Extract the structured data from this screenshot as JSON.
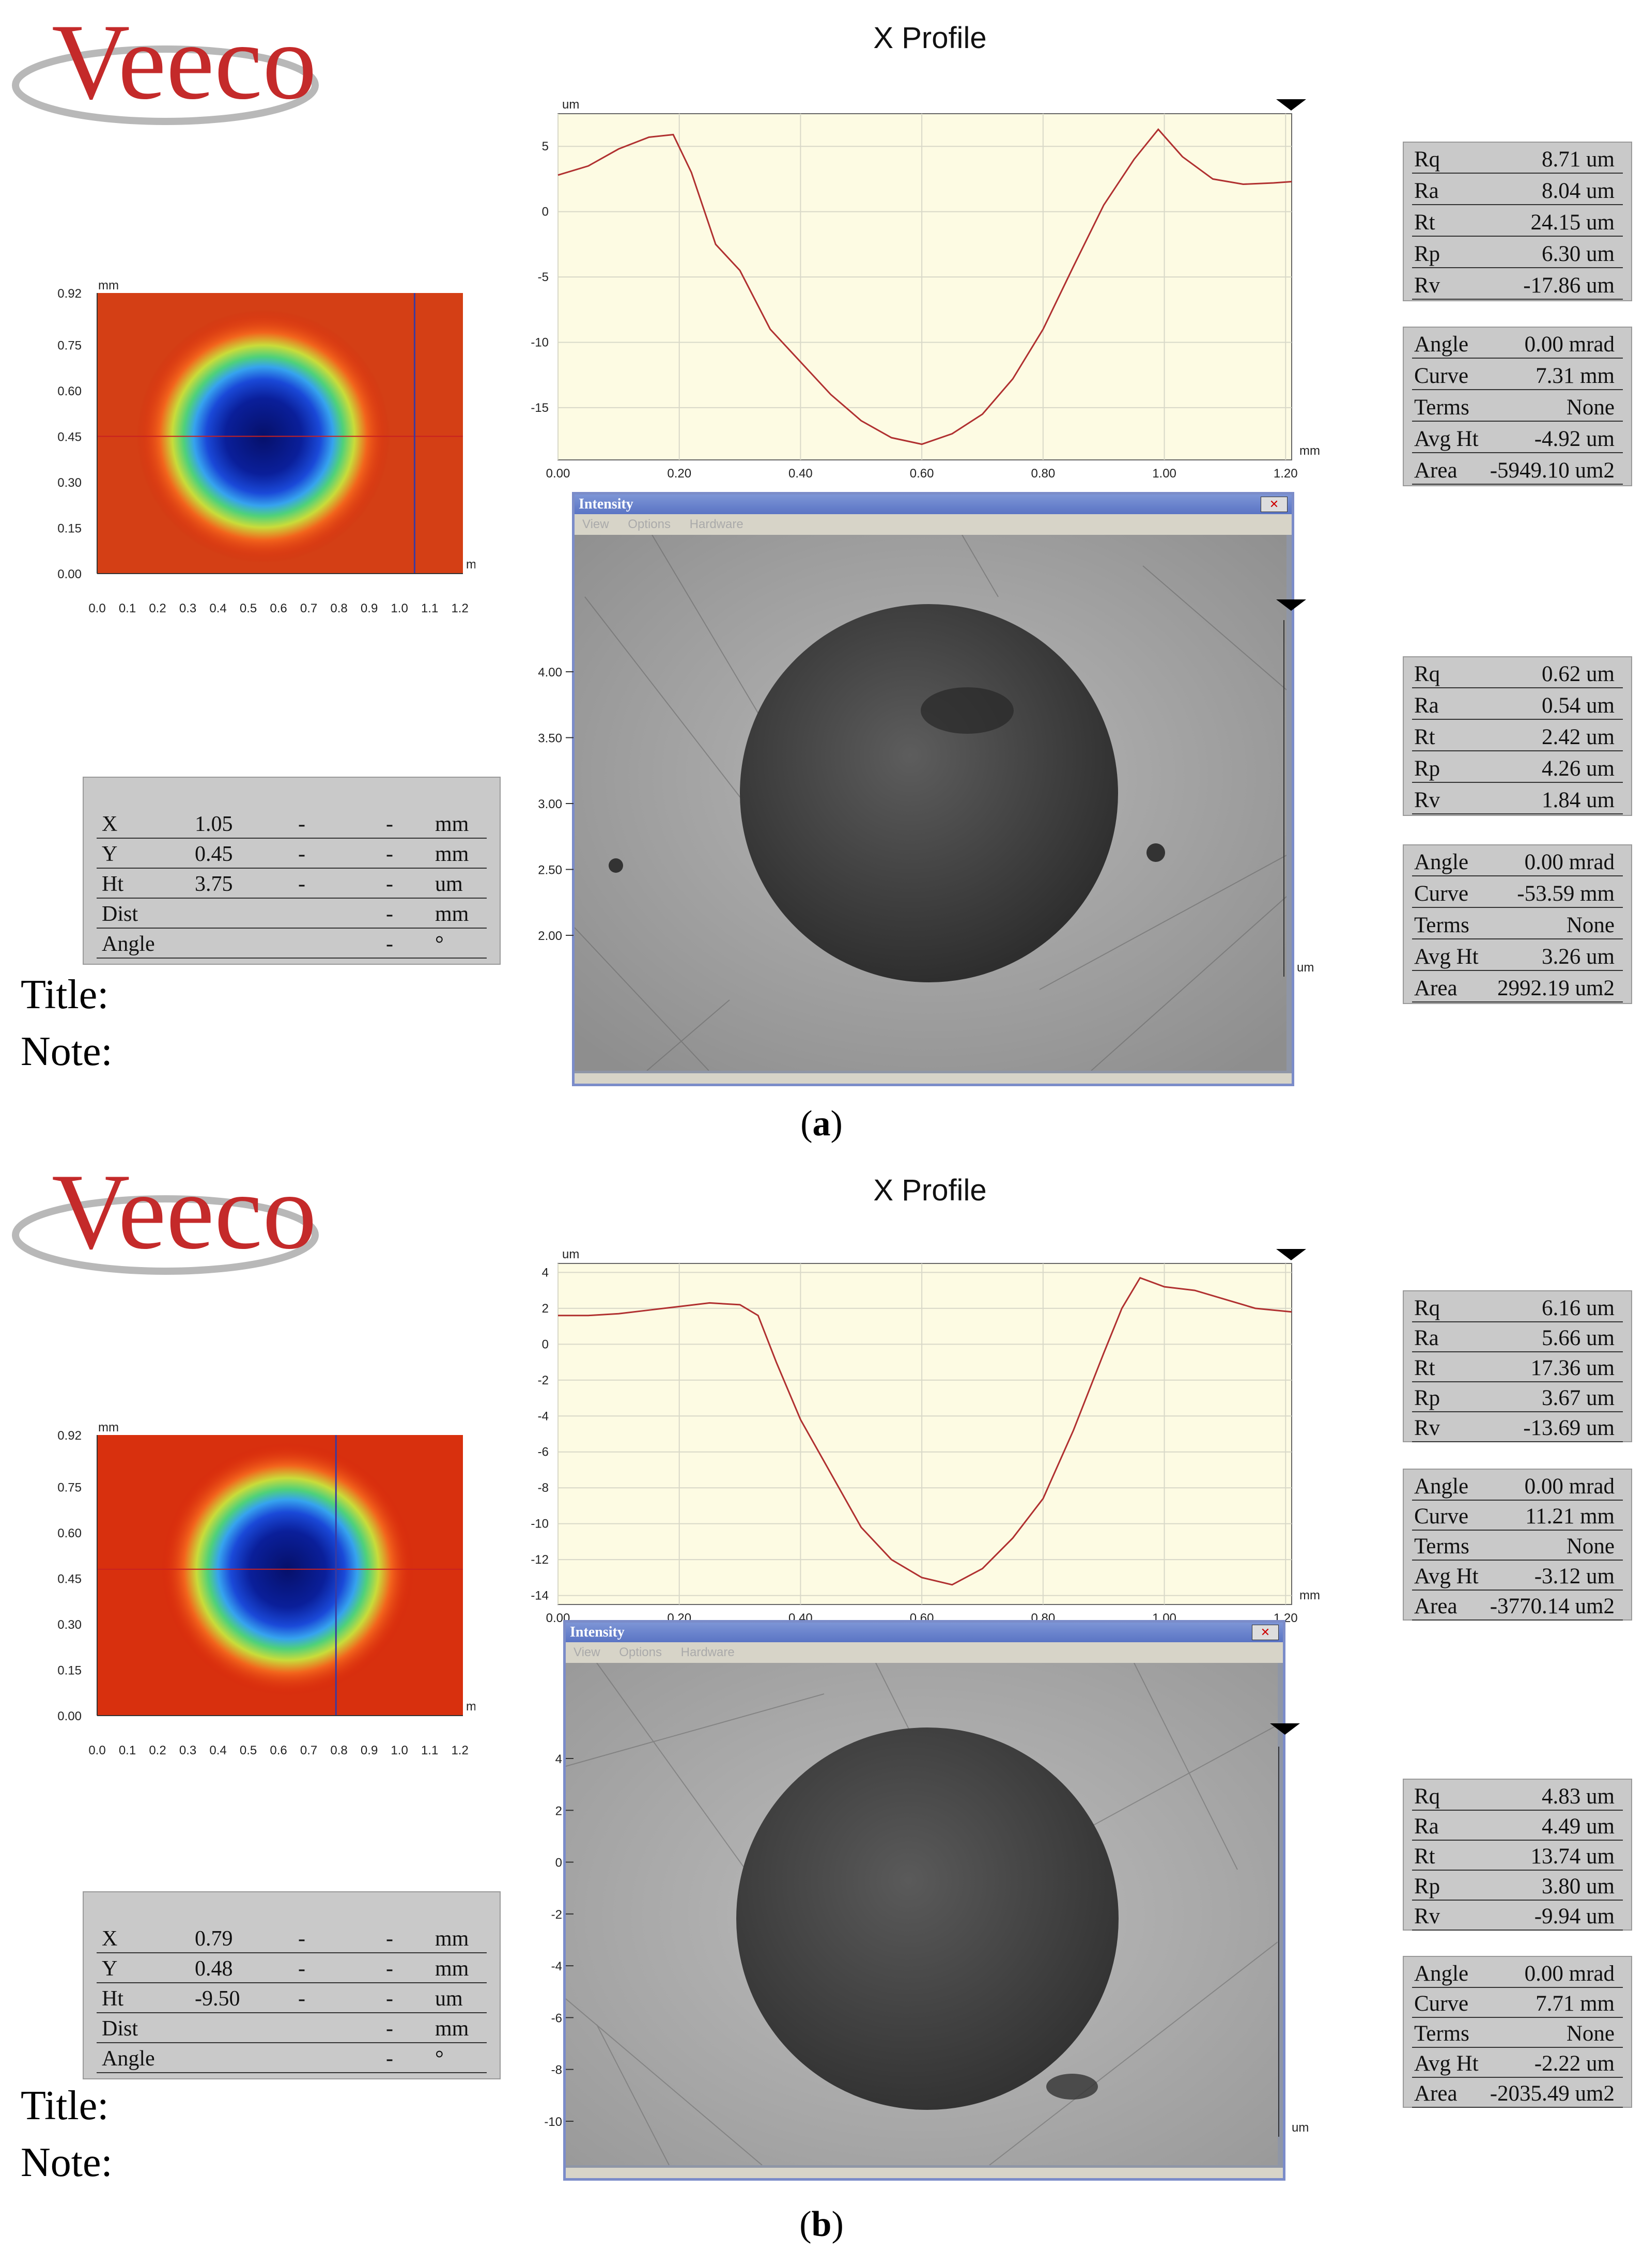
{
  "brand": "Veeco",
  "panels": [
    {
      "caption": "a",
      "profile_title": "X Profile",
      "title_label": "Title:",
      "note_label": "Note:",
      "map": {
        "y_ticks": [
          "0.92",
          "0.75",
          "0.60",
          "0.45",
          "0.30",
          "0.15",
          "0.00"
        ],
        "x_ticks": [
          "0.0",
          "0.1",
          "0.2",
          "0.3",
          "0.4",
          "0.5",
          "0.6",
          "0.7",
          "0.8",
          "0.9",
          "1.0",
          "1.1",
          "1.2"
        ],
        "unit_top": "mm",
        "unit_right": "mm",
        "cursor_x_mm": 1.05,
        "cursor_y_mm": 0.45,
        "crater_center_x_mm": 0.55,
        "crater_center_y_mm": 0.45,
        "colors": {
          "outer": "#d8200a",
          "mid": "#f5a51c",
          "ring": "#4fd17a",
          "inner": "#0a1f9a"
        }
      },
      "cursor_box": {
        "rows": [
          {
            "label": "X",
            "value": "1.05",
            "d1": "-",
            "d2": "-",
            "unit": "mm"
          },
          {
            "label": "Y",
            "value": "0.45",
            "d1": "-",
            "d2": "-",
            "unit": "mm"
          },
          {
            "label": "Ht",
            "value": "3.75",
            "d1": "-",
            "d2": "-",
            "unit": "um"
          },
          {
            "label": "Dist",
            "value": "",
            "d1": "",
            "d2": "-",
            "unit": "mm"
          },
          {
            "label": "Angle",
            "value": "",
            "d1": "",
            "d2": "-",
            "unit": "°"
          }
        ]
      },
      "chart_data": {
        "type": "line",
        "title": "X Profile",
        "xlabel": "mm",
        "ylabel": "um",
        "xlim": [
          0,
          1.21
        ],
        "ylim": [
          -19,
          7.5
        ],
        "x_ticks": [
          "0.00",
          "0.20",
          "0.40",
          "0.60",
          "0.80",
          "1.00",
          "1.20"
        ],
        "y_ticks": [
          "5",
          "0",
          "-5",
          "-10",
          "-15"
        ],
        "y_tick_values": [
          5,
          0,
          -5,
          -10,
          -15
        ],
        "x": [
          0,
          0.05,
          0.1,
          0.15,
          0.19,
          0.22,
          0.26,
          0.3,
          0.35,
          0.4,
          0.45,
          0.5,
          0.55,
          0.6,
          0.65,
          0.7,
          0.75,
          0.8,
          0.85,
          0.9,
          0.95,
          0.99,
          1.03,
          1.08,
          1.13,
          1.18,
          1.21
        ],
        "y": [
          2.8,
          3.5,
          4.8,
          5.7,
          5.9,
          3.0,
          -2.5,
          -4.5,
          -9.0,
          -11.5,
          -14.0,
          -16.0,
          -17.3,
          -17.8,
          -17.0,
          -15.5,
          -12.8,
          -9.0,
          -4.2,
          0.5,
          4.0,
          6.3,
          4.2,
          2.5,
          2.1,
          2.2,
          2.3
        ],
        "line_color": "#b03030"
      },
      "stats_top": [
        {
          "k": "Rq",
          "v": "8.71 um"
        },
        {
          "k": "Ra",
          "v": "8.04 um"
        },
        {
          "k": "Rt",
          "v": "24.15 um"
        },
        {
          "k": "Rp",
          "v": "6.30 um"
        },
        {
          "k": "Rv",
          "v": "-17.86 um"
        }
      ],
      "stats_fit_top": [
        {
          "k": "Angle",
          "v": "0.00 mrad"
        },
        {
          "k": "Curve",
          "v": "7.31 mm"
        },
        {
          "k": "Terms",
          "v": "None"
        },
        {
          "k": "Avg Ht",
          "v": "-4.92 um"
        },
        {
          "k": "Area",
          "v": "-5949.10 um2"
        }
      ],
      "intensity": {
        "title": "Intensity",
        "menu": [
          "View",
          "Options",
          "Hardware"
        ],
        "y_ticks": [
          "4.00",
          "3.50",
          "3.00",
          "2.50",
          "2.00"
        ],
        "unit": "um"
      },
      "stats_bottom": [
        {
          "k": "Rq",
          "v": "0.62 um"
        },
        {
          "k": "Ra",
          "v": "0.54 um"
        },
        {
          "k": "Rt",
          "v": "2.42 um"
        },
        {
          "k": "Rp",
          "v": "4.26 um"
        },
        {
          "k": "Rv",
          "v": "1.84 um"
        }
      ],
      "stats_fit_bottom": [
        {
          "k": "Angle",
          "v": "0.00 mrad"
        },
        {
          "k": "Curve",
          "v": "-53.59 mm"
        },
        {
          "k": "Terms",
          "v": "None"
        },
        {
          "k": "Avg Ht",
          "v": "3.26 um"
        },
        {
          "k": "Area",
          "v": "2992.19 um2"
        }
      ]
    },
    {
      "caption": "b",
      "profile_title": "X Profile",
      "title_label": "Title:",
      "note_label": "Note:",
      "map": {
        "y_ticks": [
          "0.92",
          "0.75",
          "0.60",
          "0.45",
          "0.30",
          "0.15",
          "0.00"
        ],
        "x_ticks": [
          "0.0",
          "0.1",
          "0.2",
          "0.3",
          "0.4",
          "0.5",
          "0.6",
          "0.7",
          "0.8",
          "0.9",
          "1.0",
          "1.1",
          "1.2"
        ],
        "unit_top": "mm",
        "unit_right": "mm",
        "cursor_x_mm": 0.79,
        "cursor_y_mm": 0.48,
        "crater_center_x_mm": 0.63,
        "crater_center_y_mm": 0.48,
        "colors": {
          "outer": "#d8200a",
          "mid": "#f5a51c",
          "ring": "#4fd17a",
          "inner": "#0a1f9a"
        }
      },
      "cursor_box": {
        "rows": [
          {
            "label": "X",
            "value": "0.79",
            "d1": "-",
            "d2": "-",
            "unit": "mm"
          },
          {
            "label": "Y",
            "value": "0.48",
            "d1": "-",
            "d2": "-",
            "unit": "mm"
          },
          {
            "label": "Ht",
            "value": "-9.50",
            "d1": "-",
            "d2": "-",
            "unit": "um"
          },
          {
            "label": "Dist",
            "value": "",
            "d1": "",
            "d2": "-",
            "unit": "mm"
          },
          {
            "label": "Angle",
            "value": "",
            "d1": "",
            "d2": "-",
            "unit": "°"
          }
        ]
      },
      "chart_data": {
        "type": "line",
        "title": "X Profile",
        "xlabel": "mm",
        "ylabel": "um",
        "xlim": [
          0,
          1.21
        ],
        "ylim": [
          -14.5,
          4.5
        ],
        "x_ticks": [
          "0.00",
          "0.20",
          "0.40",
          "0.60",
          "0.80",
          "1.00",
          "1.20"
        ],
        "y_ticks": [
          "4",
          "2",
          "0",
          "-2",
          "-4",
          "-6",
          "-8",
          "-10",
          "-12",
          "-14"
        ],
        "y_tick_values": [
          4,
          2,
          0,
          -2,
          -4,
          -6,
          -8,
          -10,
          -12,
          -14
        ],
        "x": [
          0,
          0.05,
          0.1,
          0.15,
          0.2,
          0.25,
          0.3,
          0.33,
          0.36,
          0.4,
          0.45,
          0.5,
          0.55,
          0.6,
          0.65,
          0.7,
          0.75,
          0.8,
          0.85,
          0.9,
          0.93,
          0.96,
          1.0,
          1.05,
          1.1,
          1.15,
          1.21
        ],
        "y": [
          1.6,
          1.6,
          1.7,
          1.9,
          2.1,
          2.3,
          2.2,
          1.6,
          -1.0,
          -4.2,
          -7.2,
          -10.2,
          -12.0,
          -13.0,
          -13.4,
          -12.5,
          -10.8,
          -8.6,
          -4.8,
          -0.5,
          2.0,
          3.7,
          3.2,
          3.0,
          2.5,
          2.0,
          1.8
        ],
        "line_color": "#b03030"
      },
      "stats_top": [
        {
          "k": "Rq",
          "v": "6.16 um"
        },
        {
          "k": "Ra",
          "v": "5.66 um"
        },
        {
          "k": "Rt",
          "v": "17.36 um"
        },
        {
          "k": "Rp",
          "v": "3.67 um"
        },
        {
          "k": "Rv",
          "v": "-13.69 um"
        }
      ],
      "stats_fit_top": [
        {
          "k": "Angle",
          "v": "0.00 mrad"
        },
        {
          "k": "Curve",
          "v": "11.21 mm"
        },
        {
          "k": "Terms",
          "v": "None"
        },
        {
          "k": "Avg Ht",
          "v": "-3.12 um"
        },
        {
          "k": "Area",
          "v": "-3770.14 um2"
        }
      ],
      "intensity": {
        "title": "Intensity",
        "menu": [
          "View",
          "Options",
          "Hardware"
        ],
        "y_ticks": [
          "4",
          "2",
          "0",
          "-2",
          "-4",
          "-6",
          "-8",
          "-10"
        ],
        "unit": "um"
      },
      "stats_bottom": [
        {
          "k": "Rq",
          "v": "4.83 um"
        },
        {
          "k": "Ra",
          "v": "4.49 um"
        },
        {
          "k": "Rt",
          "v": "13.74 um"
        },
        {
          "k": "Rp",
          "v": "3.80 um"
        },
        {
          "k": "Rv",
          "v": "-9.94 um"
        }
      ],
      "stats_fit_bottom": [
        {
          "k": "Angle",
          "v": "0.00 mrad"
        },
        {
          "k": "Curve",
          "v": "7.71 mm"
        },
        {
          "k": "Terms",
          "v": "None"
        },
        {
          "k": "Avg Ht",
          "v": "-2.22 um"
        },
        {
          "k": "Area",
          "v": "-2035.49 um2"
        }
      ]
    }
  ]
}
